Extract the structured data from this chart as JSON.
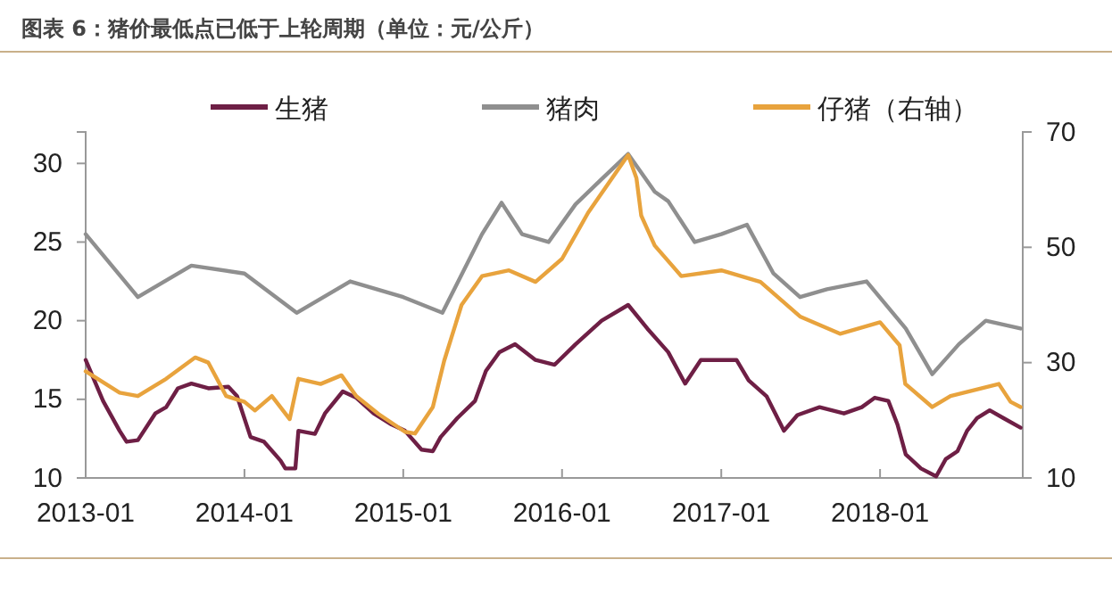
{
  "chart_data": {
    "type": "line",
    "title": "图表 6：猪价最低点已低于上轮周期（单位：元/公斤）",
    "xlim": [
      "2013-01-01",
      "2018-11-25"
    ],
    "xticks": [
      {
        "value": "2013-01-01",
        "label": "2013-01"
      },
      {
        "value": "2014-01-01",
        "label": "2014-01"
      },
      {
        "value": "2015-01-01",
        "label": "2015-01"
      },
      {
        "value": "2016-01-01",
        "label": "2016-01"
      },
      {
        "value": "2017-01-01",
        "label": "2017-01"
      },
      {
        "value": "2018-01-01",
        "label": "2018-01"
      }
    ],
    "ylim": [
      10,
      32
    ],
    "yticks": [
      10,
      15,
      20,
      25,
      30
    ],
    "y2lim": [
      10,
      70
    ],
    "y2ticks": [
      10,
      30,
      50,
      70
    ],
    "legend": "top",
    "grid": false,
    "line_style": "solid",
    "marker": "none",
    "series": [
      {
        "name": "生猪",
        "color": "#6e1f45",
        "x": [
          "2013-01-01",
          "2013-02-10",
          "2013-03-20",
          "2013-04-05",
          "2013-05-01",
          "2013-06-10",
          "2013-07-05",
          "2013-08-01",
          "2013-09-01",
          "2013-10-10",
          "2013-11-25",
          "2013-12-15",
          "2014-01-15",
          "2014-02-15",
          "2014-03-25",
          "2014-04-05",
          "2014-04-28",
          "2014-05-05",
          "2014-06-12",
          "2014-07-05",
          "2014-08-15",
          "2014-09-15",
          "2014-10-25",
          "2014-12-05",
          "2015-01-05",
          "2015-02-12",
          "2015-03-10",
          "2015-03-28",
          "2015-05-05",
          "2015-06-15",
          "2015-07-10",
          "2015-08-10",
          "2015-09-15",
          "2015-11-01",
          "2015-12-15",
          "2016-02-01",
          "2016-04-01",
          "2016-06-01",
          "2016-07-15",
          "2016-09-01",
          "2016-10-10",
          "2016-11-15",
          "2017-02-05",
          "2017-03-05",
          "2017-04-15",
          "2017-05-25",
          "2017-06-25",
          "2017-08-15",
          "2017-10-10",
          "2017-11-20",
          "2017-12-20",
          "2018-01-20",
          "2018-02-10",
          "2018-03-01",
          "2018-04-05",
          "2018-05-10",
          "2018-06-01",
          "2018-06-28",
          "2018-07-20",
          "2018-08-12",
          "2018-09-10",
          "2018-10-12",
          "2018-11-20"
        ],
        "values": [
          17.5,
          14.9,
          13.0,
          12.3,
          12.4,
          14.1,
          14.5,
          15.7,
          16.0,
          15.7,
          15.8,
          15.2,
          12.6,
          12.3,
          11.1,
          10.6,
          10.6,
          13.0,
          12.8,
          14.1,
          15.5,
          15.1,
          14.1,
          13.4,
          13.0,
          11.8,
          11.7,
          12.6,
          13.8,
          14.9,
          16.8,
          18.0,
          18.5,
          17.5,
          17.2,
          18.5,
          20.0,
          21.0,
          19.5,
          18.0,
          16.0,
          17.5,
          17.5,
          16.2,
          15.2,
          13.0,
          14.0,
          14.5,
          14.1,
          14.5,
          15.1,
          14.9,
          13.4,
          11.5,
          10.6,
          10.1,
          11.2,
          11.7,
          13.0,
          13.8,
          14.3,
          13.8,
          13.2
        ]
      },
      {
        "name": "猪肉",
        "color": "#8f8f8f",
        "x": [
          "2013-01-01",
          "2013-05-01",
          "2013-09-01",
          "2014-01-01",
          "2014-05-01",
          "2014-09-01",
          "2015-01-01",
          "2015-04-01",
          "2015-07-01",
          "2015-08-15",
          "2015-10-01",
          "2015-12-01",
          "2016-02-01",
          "2016-04-01",
          "2016-06-01",
          "2016-08-01",
          "2016-09-01",
          "2016-11-01",
          "2017-01-01",
          "2017-03-01",
          "2017-05-01",
          "2017-07-01",
          "2017-09-01",
          "2017-12-01",
          "2018-03-01",
          "2018-05-01",
          "2018-07-01",
          "2018-09-01",
          "2018-11-20"
        ],
        "values": [
          25.5,
          21.5,
          23.5,
          23.0,
          20.5,
          22.5,
          21.5,
          20.5,
          25.5,
          27.5,
          25.5,
          25.0,
          27.4,
          29.0,
          30.6,
          28.2,
          27.6,
          25.0,
          25.5,
          26.1,
          23.0,
          21.5,
          22.0,
          22.5,
          19.5,
          16.6,
          18.5,
          20.0,
          19.5
        ]
      },
      {
        "name": "仔猪（右轴）",
        "color": "#e8a33d",
        "axis": "y2",
        "x": [
          "2013-01-01",
          "2013-03-20",
          "2013-05-01",
          "2013-07-05",
          "2013-09-10",
          "2013-10-10",
          "2013-11-20",
          "2014-01-01",
          "2014-01-25",
          "2014-03-05",
          "2014-04-15",
          "2014-05-05",
          "2014-06-25",
          "2014-08-12",
          "2014-09-15",
          "2014-11-05",
          "2015-01-05",
          "2015-01-28",
          "2015-03-10",
          "2015-04-05",
          "2015-05-15",
          "2015-07-01",
          "2015-09-01",
          "2015-11-01",
          "2016-01-01",
          "2016-03-01",
          "2016-06-01",
          "2016-06-20",
          "2016-07-01",
          "2016-08-01",
          "2016-10-01",
          "2017-01-01",
          "2017-04-01",
          "2017-07-01",
          "2017-10-01",
          "2018-01-01",
          "2018-02-15",
          "2018-02-28",
          "2018-05-01",
          "2018-06-12",
          "2018-10-01",
          "2018-10-28",
          "2018-11-20"
        ],
        "values": [
          28.5,
          24.8,
          24.2,
          27.2,
          30.9,
          30.0,
          24.2,
          23.2,
          21.7,
          24.2,
          20.2,
          27.2,
          26.3,
          27.8,
          24.2,
          21.1,
          18.0,
          17.7,
          22.3,
          30.3,
          40,
          45,
          46,
          44,
          48,
          56,
          66,
          62,
          55.5,
          50.3,
          45,
          46,
          44,
          38,
          35,
          37,
          33,
          26.3,
          22.3,
          24.2,
          26.3,
          23.2,
          22.3
        ]
      }
    ]
  }
}
